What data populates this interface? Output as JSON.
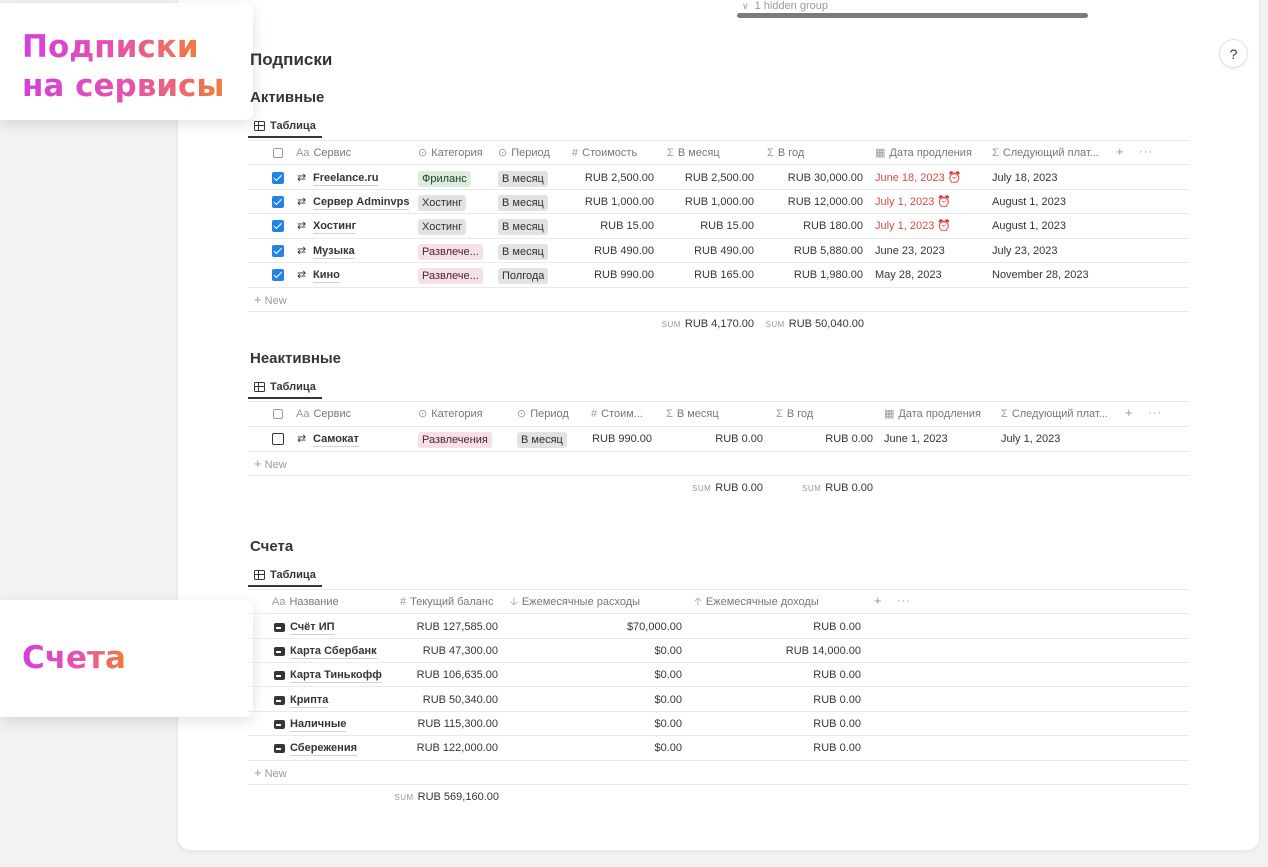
{
  "top": {
    "hidden_group": "1 hidden group",
    "help": "?"
  },
  "callouts": {
    "subs_line1": "Подписки",
    "subs_line2": "на сервисы",
    "accounts": "Счета"
  },
  "subscriptions": {
    "title": "Подписки",
    "new_label": "New",
    "sum_label": "SUM",
    "active": {
      "title": "Активные",
      "view_tab": "Таблица",
      "headers": {
        "service": "Сервис",
        "category": "Категория",
        "period": "Период",
        "cost": "Стоимость",
        "per_month": "В месяц",
        "per_year": "В год",
        "renewal": "Дата продления",
        "next_payment": "Следующий плат..."
      },
      "rows": [
        {
          "checked": true,
          "service": "Freelance.ru",
          "category": "Фриланс",
          "category_color": "green",
          "period": "В месяц",
          "cost": "RUB 2,500.00",
          "per_month": "RUB 2,500.00",
          "per_year": "RUB 30,000.00",
          "renewal": "June 18, 2023",
          "renewal_overdue": true,
          "next_payment": "July 18, 2023"
        },
        {
          "checked": true,
          "service": "Сервер Adminvps",
          "category": "Хостинг",
          "category_color": "gray",
          "period": "В месяц",
          "cost": "RUB 1,000.00",
          "per_month": "RUB 1,000.00",
          "per_year": "RUB 12,000.00",
          "renewal": "July 1, 2023",
          "renewal_overdue": true,
          "next_payment": "August 1, 2023"
        },
        {
          "checked": true,
          "service": "Хостинг",
          "category": "Хостинг",
          "category_color": "gray",
          "period": "В месяц",
          "cost": "RUB 15.00",
          "per_month": "RUB 15.00",
          "per_year": "RUB 180.00",
          "renewal": "July 1, 2023",
          "renewal_overdue": true,
          "next_payment": "August 1, 2023"
        },
        {
          "checked": true,
          "service": "Музыка",
          "category": "Развлече...",
          "category_color": "pink",
          "period": "В месяц",
          "cost": "RUB 490.00",
          "per_month": "RUB 490.00",
          "per_year": "RUB 5,880.00",
          "renewal": "June 23, 2023",
          "renewal_overdue": false,
          "next_payment": "July 23, 2023"
        },
        {
          "checked": true,
          "service": "Кино",
          "category": "Развлече...",
          "category_color": "pink",
          "period": "Полгода",
          "cost": "RUB 990.00",
          "per_month": "RUB 165.00",
          "per_year": "RUB 1,980.00",
          "renewal": "May 28, 2023",
          "renewal_overdue": false,
          "next_payment": "November 28, 2023"
        }
      ],
      "sum_month": "RUB 4,170.00",
      "sum_year": "RUB 50,040.00"
    },
    "inactive": {
      "title": "Неактивные",
      "view_tab": "Таблица",
      "headers": {
        "service": "Сервис",
        "category": "Категория",
        "period": "Период",
        "cost": "Стоим...",
        "per_month": "В месяц",
        "per_year": "В год",
        "renewal": "Дата продления",
        "next_payment": "Следующий плат..."
      },
      "rows": [
        {
          "checked": false,
          "service": "Самокат",
          "category": "Развлечения",
          "category_color": "pink",
          "period": "В месяц",
          "cost": "RUB 990.00",
          "per_month": "RUB 0.00",
          "per_year": "RUB 0.00",
          "renewal": "June 1, 2023",
          "next_payment": "July 1, 2023"
        }
      ],
      "sum_month": "RUB 0.00",
      "sum_year": "RUB 0.00"
    }
  },
  "accounts": {
    "title": "Счета",
    "view_tab": "Таблица",
    "headers": {
      "name": "Название",
      "balance": "Текущий баланс",
      "expenses": "Ежемесячные расходы",
      "income": "Ежемесячные доходы"
    },
    "rows": [
      {
        "name": "Счёт ИП",
        "balance": "RUB 127,585.00",
        "expenses": "$70,000.00",
        "income": "RUB 0.00"
      },
      {
        "name": "Карта Сбербанк",
        "balance": "RUB 47,300.00",
        "expenses": "$0.00",
        "income": "RUB 14,000.00"
      },
      {
        "name": "Карта Тинькофф",
        "balance": "RUB 106,635.00",
        "expenses": "$0.00",
        "income": "RUB 0.00"
      },
      {
        "name": "Крипта",
        "balance": "RUB 50,340.00",
        "expenses": "$0.00",
        "income": "RUB 0.00"
      },
      {
        "name": "Наличные",
        "balance": "RUB 115,300.00",
        "expenses": "$0.00",
        "income": "RUB 0.00"
      },
      {
        "name": "Сбережения",
        "balance": "RUB 122,000.00",
        "expenses": "$0.00",
        "income": "RUB 0.00"
      }
    ],
    "new_label": "New",
    "sum_label": "SUM",
    "sum_balance": "RUB 569,160.00"
  }
}
